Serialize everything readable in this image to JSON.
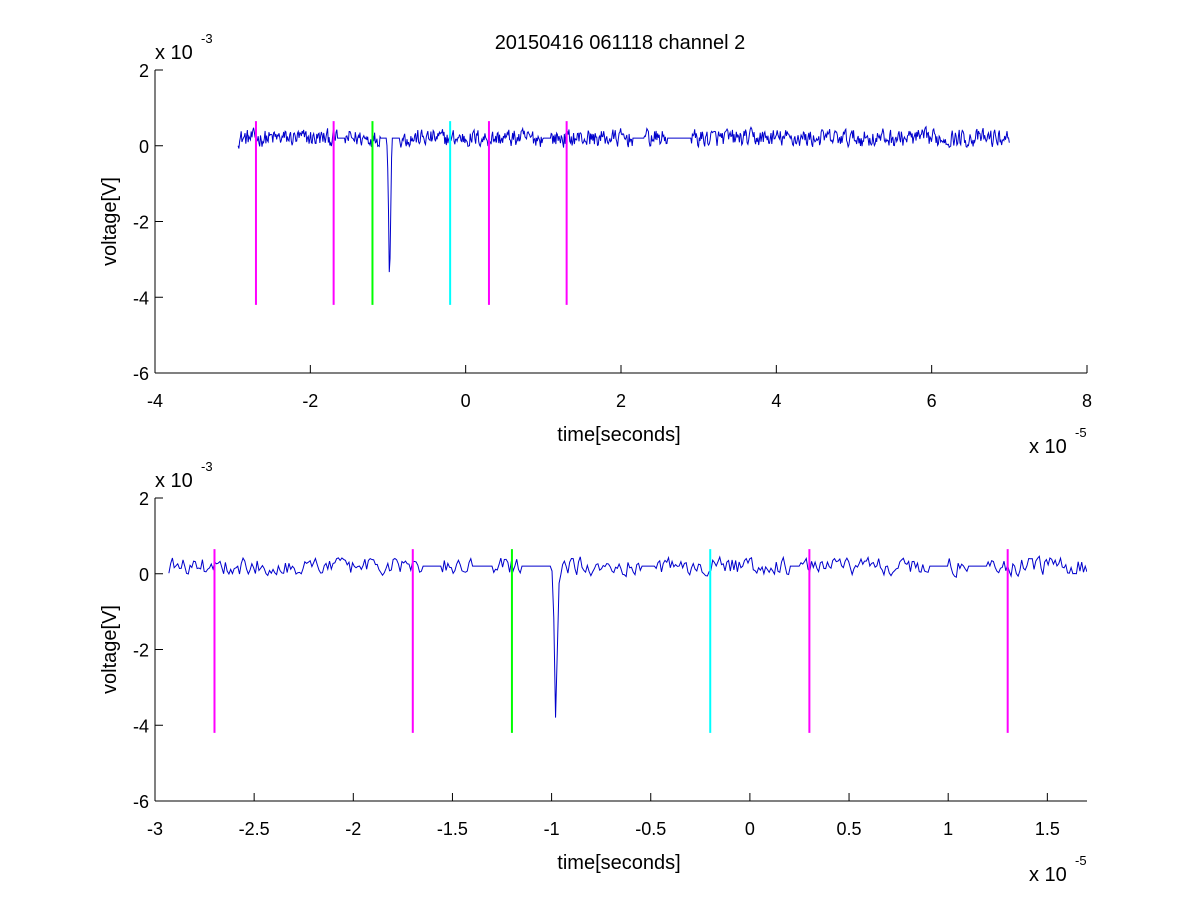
{
  "figure": {
    "title": "20150416 061118 channel 2"
  },
  "chart_data": [
    {
      "type": "line",
      "title": "20150416 061118 channel 2",
      "xlabel": "time[seconds]",
      "ylabel": "voltage[V]",
      "x_multiplier": {
        "base": "x 10",
        "power": "-5"
      },
      "y_multiplier": {
        "base": "x 10",
        "power": "-3"
      },
      "xlim": [
        -4,
        8
      ],
      "ylim": [
        -6,
        2
      ],
      "x_ticks": [
        -4,
        -2,
        0,
        2,
        4,
        6,
        8
      ],
      "x_tick_labels": [
        "-4",
        "-2",
        "0",
        "2",
        "4",
        "6",
        "8"
      ],
      "y_ticks": [
        -6,
        -4,
        -2,
        0,
        2
      ],
      "y_tick_labels": [
        "-6",
        "-4",
        "-2",
        "0",
        "2"
      ],
      "grid": false,
      "series": [
        {
          "color": "#0000cc",
          "baseline": 0.2,
          "noise_amplitude": 0.35,
          "x_range": [
            -2.93,
            7.0
          ],
          "flat_segments": [
            [
              -1.65,
              -1.55
            ],
            [
              -1.1,
              -1.0
            ],
            [
              -0.95,
              -0.85
            ],
            [
              1.0,
              1.1
            ],
            [
              2.15,
              2.3
            ],
            [
              2.6,
              2.9
            ]
          ],
          "pulse": {
            "start": -1.02,
            "min_x": -0.98,
            "min_y": -3.8,
            "end": -0.95
          }
        }
      ],
      "markers": [
        {
          "x": -2.7,
          "color": "#ff00ff",
          "y_top": 0.65,
          "y_bottom": -4.2
        },
        {
          "x": -1.7,
          "color": "#ff00ff",
          "y_top": 0.65,
          "y_bottom": -4.2
        },
        {
          "x": -1.2,
          "color": "#00ff00",
          "y_top": 0.65,
          "y_bottom": -4.2
        },
        {
          "x": -0.2,
          "color": "#00ffff",
          "y_top": 0.65,
          "y_bottom": -4.2
        },
        {
          "x": 0.3,
          "color": "#ff00ff",
          "y_top": 0.65,
          "y_bottom": -4.2
        },
        {
          "x": 1.3,
          "color": "#ff00ff",
          "y_top": 0.65,
          "y_bottom": -4.2
        }
      ]
    },
    {
      "type": "line",
      "title": "",
      "xlabel": "time[seconds]",
      "ylabel": "voltage[V]",
      "x_multiplier": {
        "base": "x 10",
        "power": "-5"
      },
      "y_multiplier": {
        "base": "x 10",
        "power": "-3"
      },
      "xlim": [
        -3.0,
        1.7
      ],
      "ylim": [
        -6,
        2
      ],
      "x_ticks": [
        -3,
        -2.5,
        -2,
        -1.5,
        -1,
        -0.5,
        0,
        0.5,
        1,
        1.5
      ],
      "x_tick_labels": [
        "-3",
        "-2.5",
        "-2",
        "-1.5",
        "-1",
        "-0.5",
        "0",
        "0.5",
        "1",
        "1.5"
      ],
      "y_ticks": [
        -6,
        -4,
        -2,
        0,
        2
      ],
      "y_tick_labels": [
        "-6",
        "-4",
        "-2",
        "0",
        "2"
      ],
      "grid": false,
      "series": [
        {
          "color": "#0000cc",
          "baseline": 0.2,
          "noise_amplitude": 0.35,
          "x_range": [
            -2.93,
            1.7
          ],
          "flat_segments": [
            [
              -1.65,
              -1.55
            ],
            [
              -1.4,
              -1.3
            ],
            [
              -1.15,
              -1.0
            ],
            [
              -0.55,
              -0.48
            ],
            [
              0.2,
              0.25
            ],
            [
              0.9,
              1.0
            ],
            [
              1.1,
              1.2
            ]
          ],
          "pulse": {
            "start": -1.0,
            "min_x": -0.98,
            "min_y": -3.8,
            "end": -0.96
          }
        }
      ],
      "markers": [
        {
          "x": -2.7,
          "color": "#ff00ff",
          "y_top": 0.65,
          "y_bottom": -4.2
        },
        {
          "x": -1.7,
          "color": "#ff00ff",
          "y_top": 0.65,
          "y_bottom": -4.2
        },
        {
          "x": -1.2,
          "color": "#00ff00",
          "y_top": 0.65,
          "y_bottom": -4.2
        },
        {
          "x": -0.2,
          "color": "#00ffff",
          "y_top": 0.65,
          "y_bottom": -4.2
        },
        {
          "x": 0.3,
          "color": "#ff00ff",
          "y_top": 0.65,
          "y_bottom": -4.2
        },
        {
          "x": 1.3,
          "color": "#ff00ff",
          "y_top": 0.65,
          "y_bottom": -4.2
        }
      ]
    }
  ]
}
